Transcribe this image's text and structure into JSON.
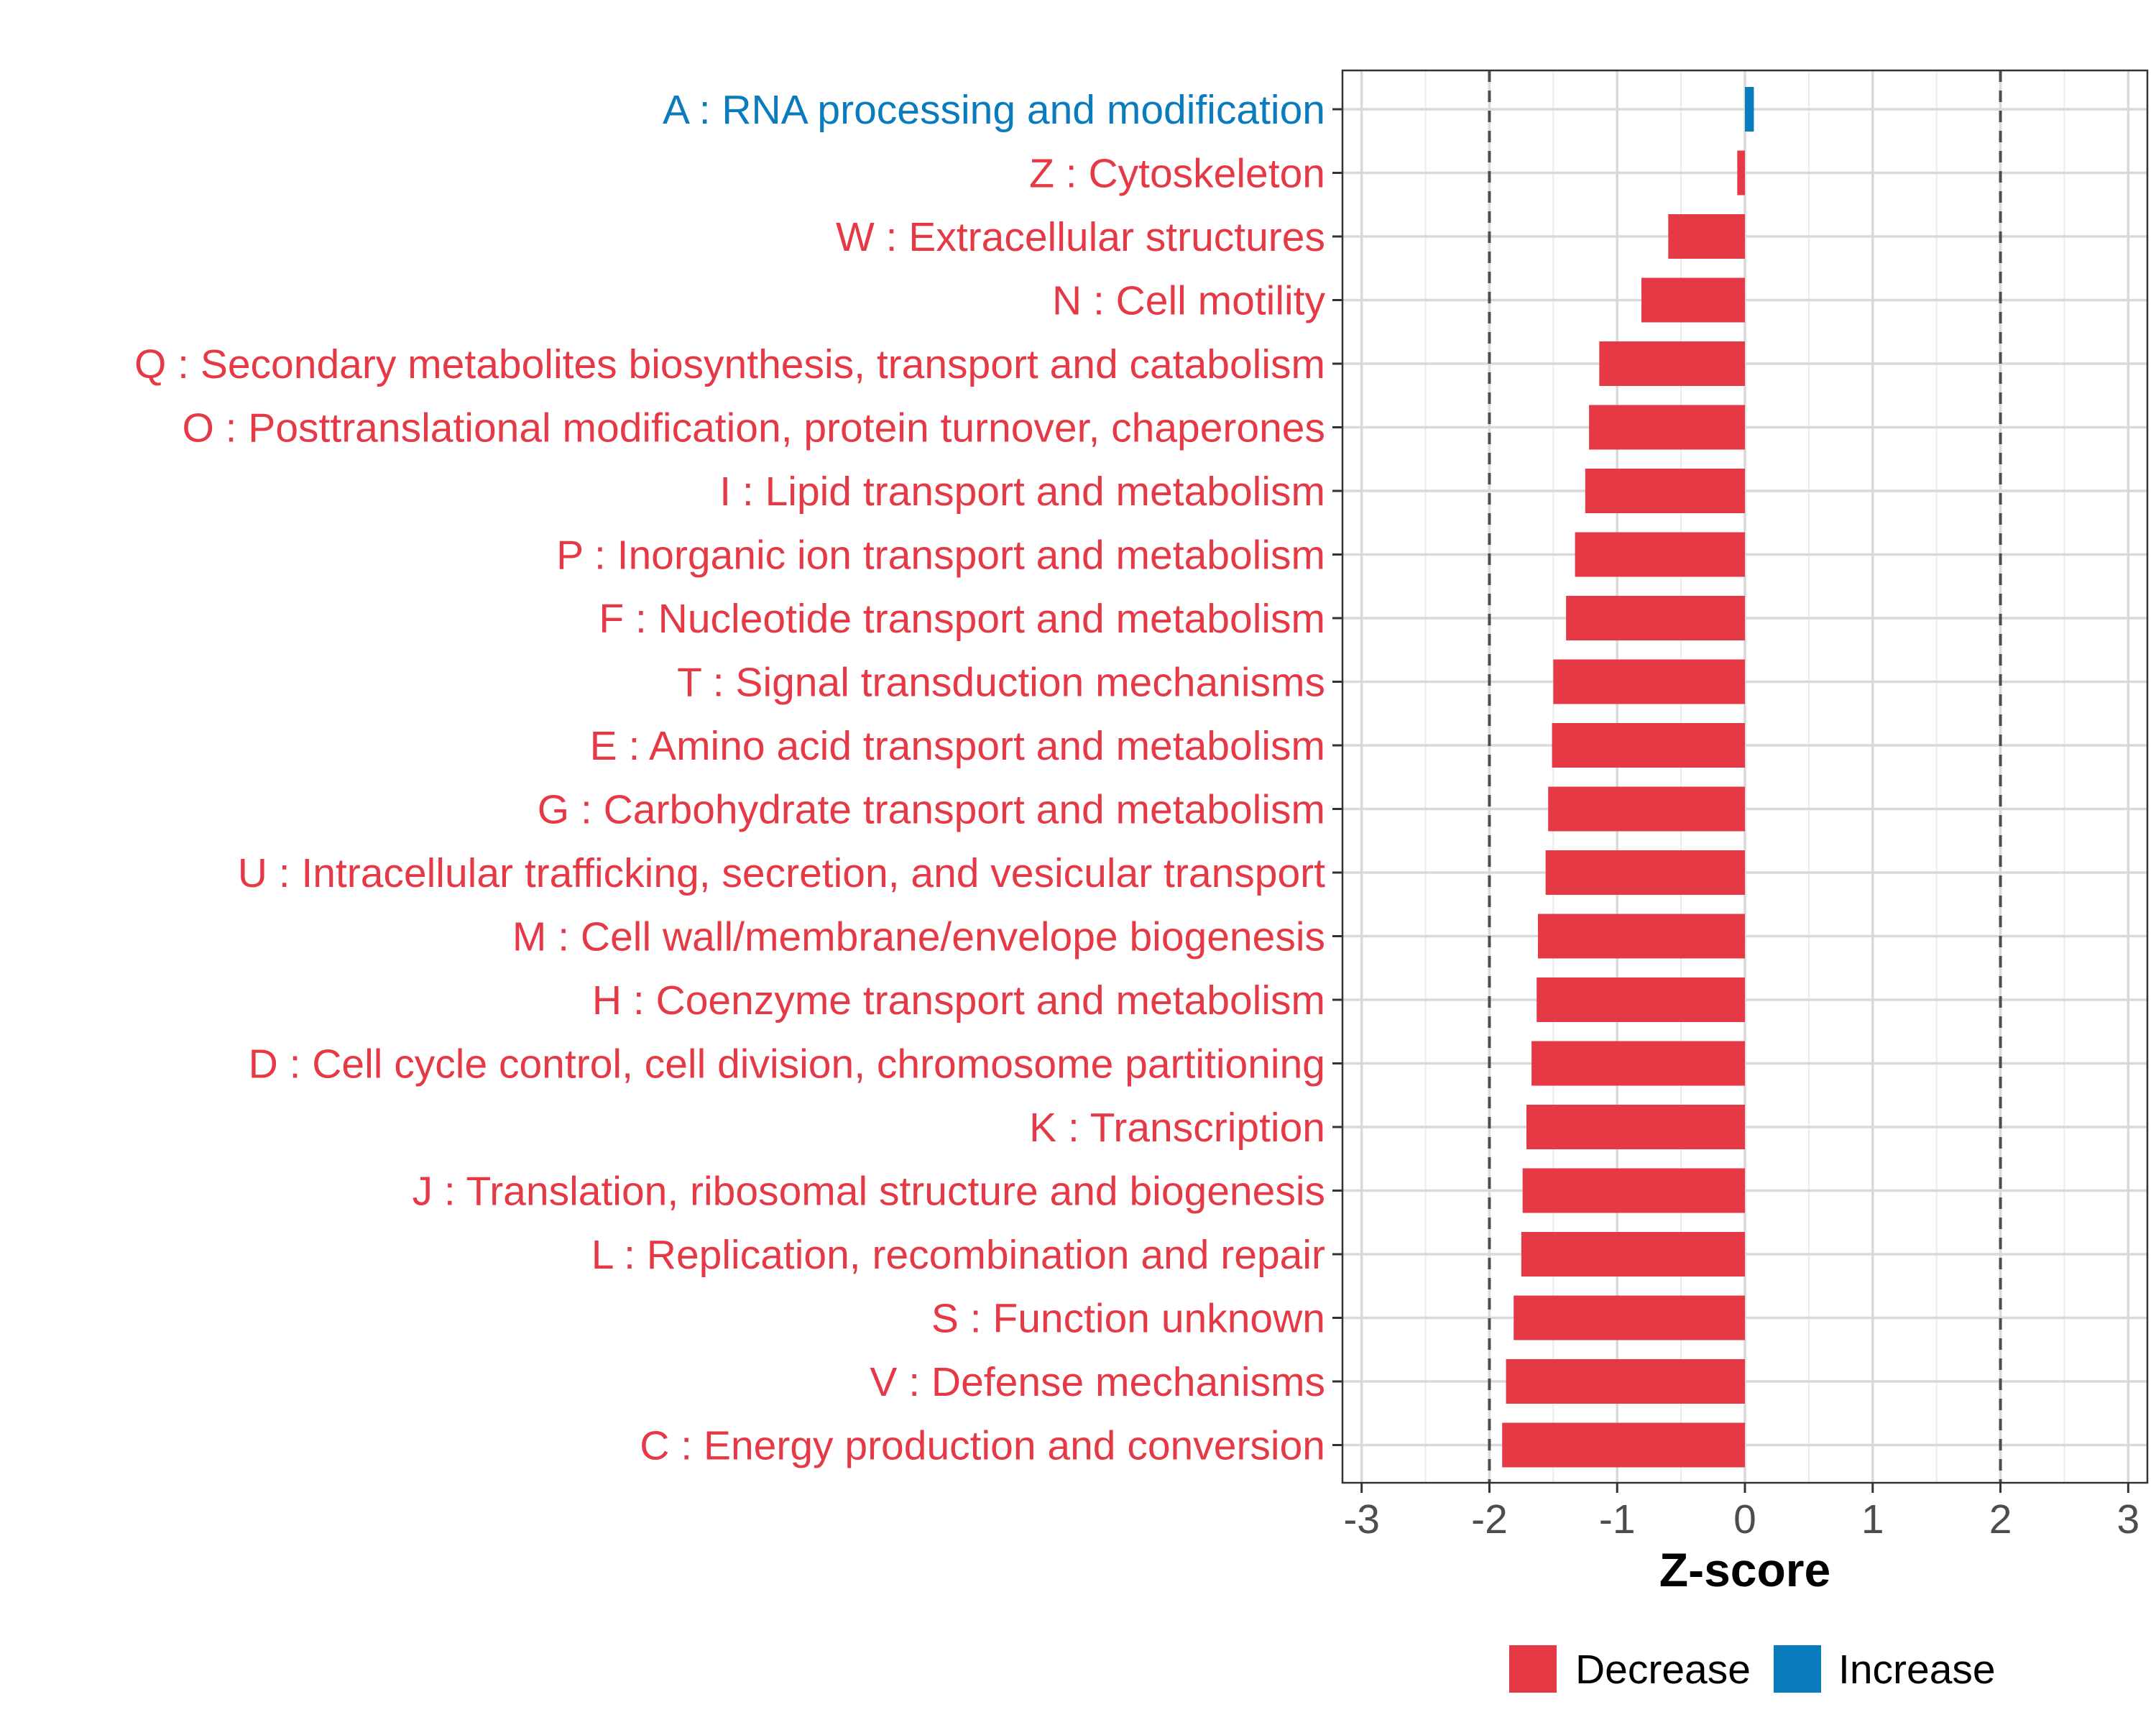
{
  "chart_data": {
    "type": "bar",
    "orientation": "horizontal",
    "categories": [
      "A : RNA processing and modification",
      "Z : Cytoskeleton",
      "W : Extracellular structures",
      "N : Cell motility",
      "Q : Secondary metabolites biosynthesis, transport and catabolism",
      "O : Posttranslational modification, protein turnover, chaperones",
      "I : Lipid transport and metabolism",
      "P : Inorganic ion transport and metabolism",
      "F : Nucleotide transport and metabolism",
      "T : Signal transduction mechanisms",
      "E : Amino acid transport and metabolism",
      "G : Carbohydrate transport and metabolism",
      "U : Intracellular trafficking, secretion, and vesicular transport",
      "M : Cell wall/membrane/envelope biogenesis",
      "H : Coenzyme transport and metabolism",
      "D : Cell cycle control, cell division, chromosome partitioning",
      "K : Transcription",
      "J : Translation, ribosomal structure and biogenesis",
      "L : Replication, recombination and repair",
      "S : Function unknown",
      "V : Defense mechanisms",
      "C : Energy production and conversion"
    ],
    "values": [
      0.07,
      -0.06,
      -0.6,
      -0.81,
      -1.14,
      -1.22,
      -1.25,
      -1.33,
      -1.4,
      -1.5,
      -1.51,
      -1.54,
      -1.56,
      -1.62,
      -1.63,
      -1.67,
      -1.71,
      -1.74,
      -1.75,
      -1.81,
      -1.87,
      -1.9
    ],
    "groups": [
      "Increase",
      "Decrease",
      "Decrease",
      "Decrease",
      "Decrease",
      "Decrease",
      "Decrease",
      "Decrease",
      "Decrease",
      "Decrease",
      "Decrease",
      "Decrease",
      "Decrease",
      "Decrease",
      "Decrease",
      "Decrease",
      "Decrease",
      "Decrease",
      "Decrease",
      "Decrease",
      "Decrease",
      "Decrease"
    ],
    "xlabel": "Z-score",
    "ylabel": "",
    "xlim": [
      -3.15,
      3.15
    ],
    "xticks": [
      -3,
      -2,
      -1,
      0,
      1,
      2,
      3
    ],
    "reference_lines": [
      -2,
      2
    ],
    "grid": true,
    "legend": {
      "placement": "bottom",
      "items": [
        {
          "label": "Decrease",
          "color": "#e63946"
        },
        {
          "label": "Increase",
          "color": "#0a7bbd"
        }
      ]
    },
    "colors": {
      "Decrease": "#e63946",
      "Increase": "#0a7bbd"
    }
  }
}
